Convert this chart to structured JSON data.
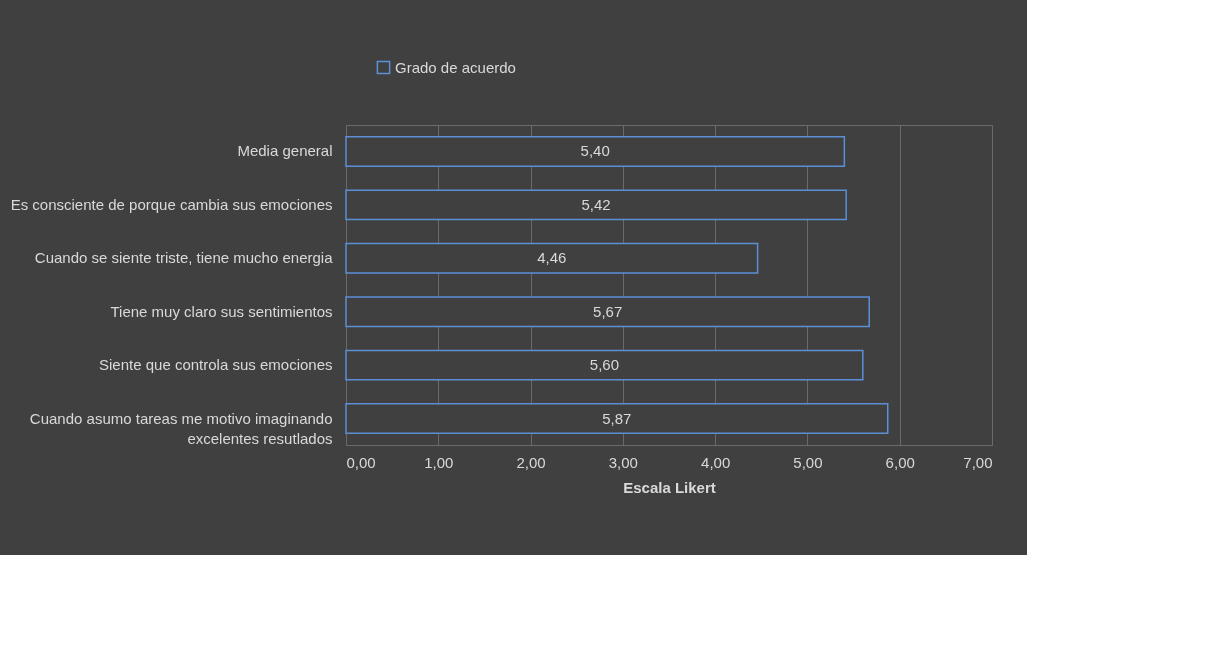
{
  "chart_data": {
    "type": "bar",
    "orientation": "horizontal",
    "categories": [
      "Media general",
      "Es consciente de porque cambia sus emociones",
      "Cuando se siente triste, tiene mucho energia",
      "Tiene muy claro sus sentimientos",
      "Siente que controla sus emociones",
      "Cuando asumo tareas me motivo imaginando\nexcelentes resutlados"
    ],
    "series": [
      {
        "name": "Grado de acuerdo",
        "color": "#5b8fd6",
        "values": [
          5.4,
          5.42,
          4.46,
          5.67,
          5.6,
          5.87
        ]
      }
    ],
    "value_labels": [
      "5,40",
      "5,42",
      "4,46",
      "5,67",
      "5,60",
      "5,87"
    ],
    "xlabel": "Escala Likert",
    "xlim": [
      0,
      7
    ],
    "xticks": [
      {
        "value": 0,
        "label": "0,00"
      },
      {
        "value": 1,
        "label": "1,00"
      },
      {
        "value": 2,
        "label": "2,00"
      },
      {
        "value": 3,
        "label": "3,00"
      },
      {
        "value": 4,
        "label": "4,00"
      },
      {
        "value": 5,
        "label": "5,00"
      },
      {
        "value": 6,
        "label": "6,00"
      },
      {
        "value": 7,
        "label": "7,00"
      }
    ],
    "grid": "x",
    "legend": "top"
  }
}
